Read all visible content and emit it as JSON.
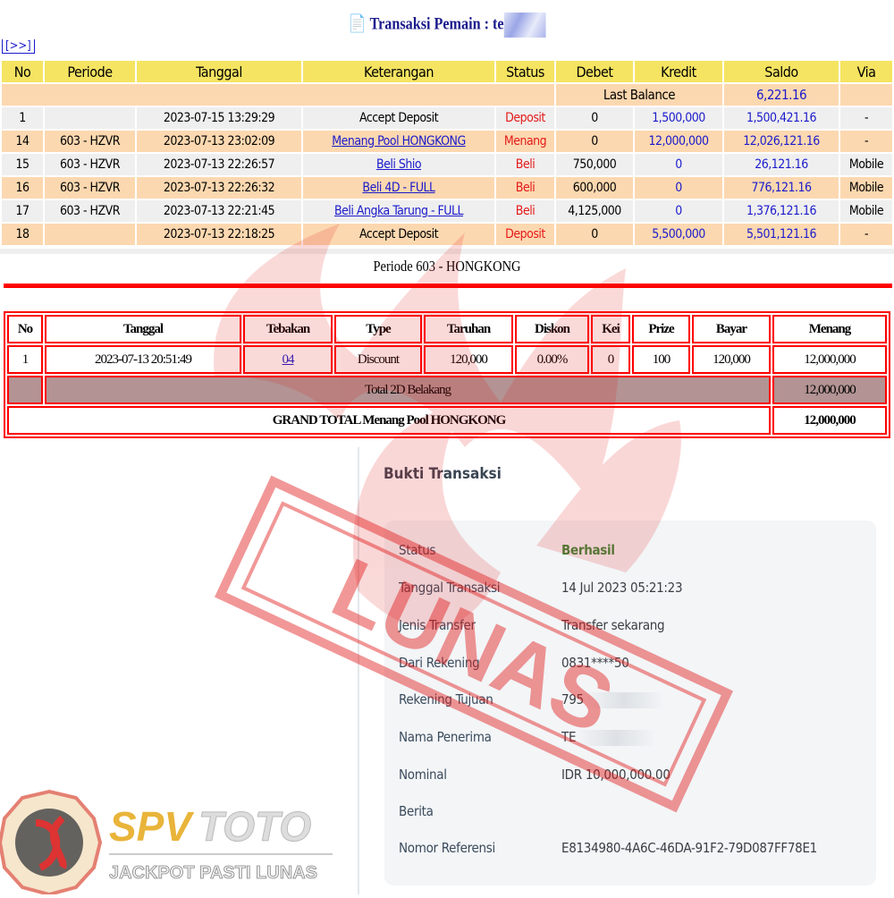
{
  "header": {
    "title": "Transaksi  Pemain : te",
    "next_label": "[>>]"
  },
  "transactions": {
    "columns": [
      "No",
      "Periode",
      "Tanggal",
      "Keterangan",
      "Status",
      "Debet",
      "Kredit",
      "Saldo",
      "Via"
    ],
    "last_balance_label": "Last Balance",
    "last_balance": "6,221.16",
    "rows": [
      {
        "no": "1",
        "periode": "",
        "tanggal": "2023-07-15 13:29:29",
        "keterangan": "Accept Deposit",
        "link": false,
        "status": "Deposit",
        "debet": "0",
        "kredit": "1,500,000",
        "saldo": "1,500,421.16",
        "via": "-"
      },
      {
        "no": "14",
        "periode": "603 - HZVR",
        "tanggal": "2023-07-13 23:02:09",
        "keterangan": "Menang Pool HONGKONG",
        "link": true,
        "status": "Menang",
        "debet": "0",
        "kredit": "12,000,000",
        "saldo": "12,026,121.16",
        "via": "-"
      },
      {
        "no": "15",
        "periode": "603 - HZVR",
        "tanggal": "2023-07-13 22:26:57",
        "keterangan": "Beli Shio",
        "link": true,
        "status": "Beli",
        "debet": "750,000",
        "kredit": "0",
        "saldo": "26,121.16",
        "via": "Mobile"
      },
      {
        "no": "16",
        "periode": "603 - HZVR",
        "tanggal": "2023-07-13 22:26:32",
        "keterangan": "Beli 4D - FULL",
        "link": true,
        "status": "Beli",
        "debet": "600,000",
        "kredit": "0",
        "saldo": "776,121.16",
        "via": "Mobile"
      },
      {
        "no": "17",
        "periode": "603 - HZVR",
        "tanggal": "2023-07-13 22:21:45",
        "keterangan": "Beli Angka Tarung - FULL",
        "link": true,
        "status": "Beli",
        "debet": "4,125,000",
        "kredit": "0",
        "saldo": "1,376,121.16",
        "via": "Mobile"
      },
      {
        "no": "18",
        "periode": "",
        "tanggal": "2023-07-13 22:18:25",
        "keterangan": "Accept Deposit",
        "link": false,
        "status": "Deposit",
        "debet": "0",
        "kredit": "5,500,000",
        "saldo": "5,501,121.16",
        "via": "-"
      }
    ]
  },
  "periode": {
    "title": "Periode 603 - HONGKONG",
    "columns": [
      "No",
      "Tanggal",
      "Tebakan",
      "Type",
      "Taruhan",
      "Diskon",
      "Kei",
      "Prize",
      "Bayar",
      "Menang"
    ],
    "row": {
      "no": "1",
      "tanggal": "2023-07-13 20:51:49",
      "tebakan": "04",
      "type": "Discount",
      "taruhan": "120,000",
      "diskon": "0.00%",
      "kei": "0",
      "prize": "100",
      "bayar": "120,000",
      "menang": "12,000,000"
    },
    "total_label": "Total 2D Belakang",
    "total_value": "12,000,000",
    "grand_label": "GRAND TOTAL  Menang Pool HONGKONG",
    "grand_value": "12,000,000"
  },
  "bukti": {
    "title": "Bukti Transaksi",
    "fields": [
      {
        "label": "Status",
        "value": "Berhasil"
      },
      {
        "label": "Tanggal Transaksi",
        "value": "14 Jul 2023 05:21:23"
      },
      {
        "label": "Jenis Transfer",
        "value": "Transfer sekarang"
      },
      {
        "label": "Dari Rekening",
        "value": "0831****50"
      },
      {
        "label": "Rekening Tujuan",
        "value": "795"
      },
      {
        "label": "Nama Penerima",
        "value": "TE"
      },
      {
        "label": "Nominal",
        "value": "IDR 10,000,000.00"
      },
      {
        "label": "Berita",
        "value": ""
      },
      {
        "label": "Nomor Referensi",
        "value": "E8134980-4A6C-46DA-91F2-79D087FF78E1"
      }
    ]
  },
  "watermark": {
    "stamp_text": "LUNAS"
  },
  "logo": {
    "brand_a": "SPV",
    "brand_b": "TOTO",
    "tagline": "JACKPOT PASTI LUNAS"
  },
  "colors": {
    "header_yellow": "#f5e462",
    "row_peach": "#fcd8b0",
    "link_blue": "#1a1acc",
    "status_red": "#e51a1a",
    "border_red": "#ff0000",
    "success_green": "#3c8a3c"
  }
}
